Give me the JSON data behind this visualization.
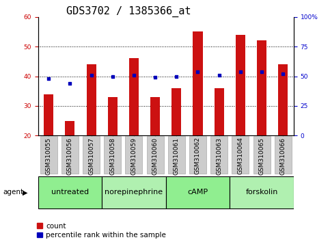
{
  "title": "GDS3702 / 1385366_at",
  "samples": [
    "GSM310055",
    "GSM310056",
    "GSM310057",
    "GSM310058",
    "GSM310059",
    "GSM310060",
    "GSM310061",
    "GSM310062",
    "GSM310063",
    "GSM310064",
    "GSM310065",
    "GSM310066"
  ],
  "count_values": [
    34,
    25,
    44,
    33,
    46,
    33,
    36,
    55,
    36,
    54,
    52,
    44
  ],
  "percentile_values": [
    48,
    44,
    51,
    50,
    51,
    49,
    50,
    54,
    51,
    54,
    54,
    52
  ],
  "groups": [
    {
      "label": "untreated",
      "start": 0,
      "end": 3,
      "color": "#90ee90"
    },
    {
      "label": "norepinephrine",
      "start": 3,
      "end": 6,
      "color": "#b0f0b0"
    },
    {
      "label": "cAMP",
      "start": 6,
      "end": 9,
      "color": "#90ee90"
    },
    {
      "label": "forskolin",
      "start": 9,
      "end": 12,
      "color": "#b0f0b0"
    }
  ],
  "bar_color": "#cc1111",
  "dot_color": "#0000bb",
  "ylim_left": [
    20,
    60
  ],
  "ylim_right": [
    0,
    100
  ],
  "yticks_left": [
    20,
    30,
    40,
    50,
    60
  ],
  "yticks_right": [
    0,
    25,
    50,
    75,
    100
  ],
  "left_tick_color": "#cc0000",
  "right_tick_color": "#0000cc",
  "title_fontsize": 11,
  "tick_fontsize": 6.5,
  "legend_fontsize": 7.5,
  "group_label_fontsize": 8,
  "agent_fontsize": 7.5,
  "bar_width": 0.45,
  "xtick_bg_color": "#cccccc",
  "xtick_border_color": "#aaaaaa",
  "agent_label": "agent"
}
